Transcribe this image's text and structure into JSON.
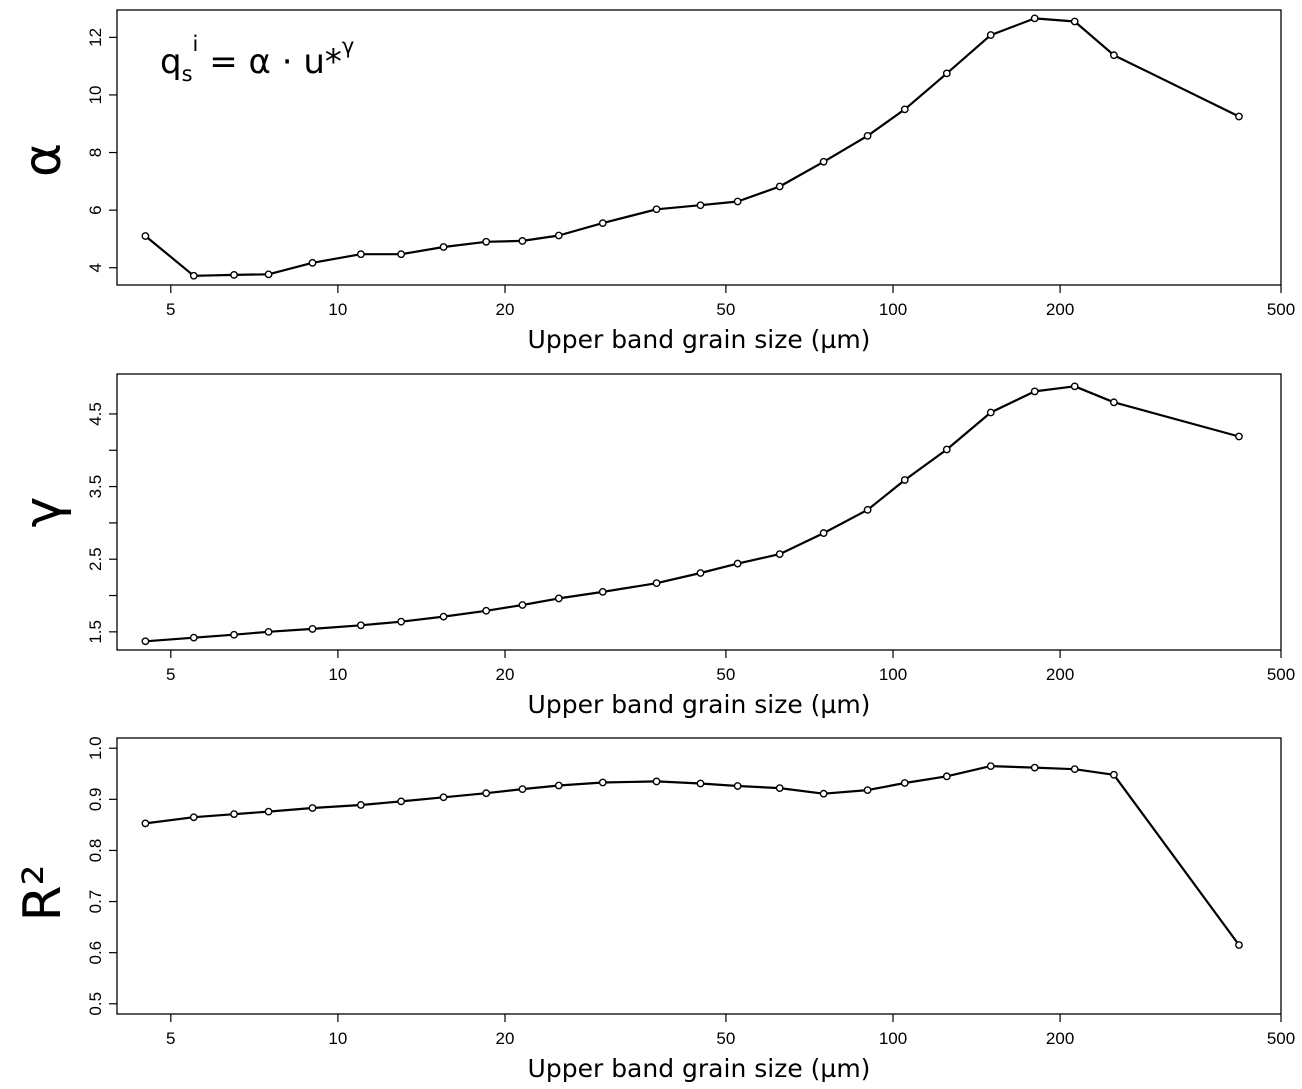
{
  "chart_data": [
    {
      "type": "line",
      "id": "alpha",
      "ylabel": "α",
      "xlabel": "Upper band grain size (µm)",
      "x_scale": "log",
      "xlim": [
        4.0,
        500
      ],
      "x_ticks": [
        5,
        10,
        20,
        50,
        100,
        200,
        500
      ],
      "x_tick_labels": [
        "5",
        "10",
        "20",
        "50",
        "100",
        "200",
        "500"
      ],
      "ylim": [
        3.4,
        12.95
      ],
      "y_ticks": [
        4,
        6,
        8,
        10,
        12
      ],
      "y_tick_labels": [
        "4",
        "6",
        "8",
        "10",
        "12"
      ],
      "annotation": {
        "base": "q",
        "sub": "s",
        "sup": "i",
        "mid": " = α · u*",
        "exp": "γ"
      },
      "series": [
        {
          "x": [
            4.5,
            5.5,
            6.5,
            7.5,
            9.0,
            11.0,
            13.0,
            15.5,
            18.5,
            21.5,
            25.0,
            30.0,
            37.5,
            45.0,
            52.5,
            62.5,
            75.0,
            90.0,
            105.0,
            125.0,
            150.0,
            180.0,
            212.5,
            250.0,
            420.0
          ],
          "y": [
            5.1,
            3.72,
            3.75,
            3.77,
            4.17,
            4.47,
            4.47,
            4.72,
            4.9,
            4.93,
            5.12,
            5.55,
            6.03,
            6.17,
            6.3,
            6.82,
            7.68,
            8.58,
            9.5,
            10.75,
            12.08,
            12.66,
            12.55,
            11.38,
            9.25
          ]
        }
      ]
    },
    {
      "type": "line",
      "id": "gamma",
      "ylabel": "γ",
      "xlabel": "Upper band grain size (µm)",
      "x_scale": "log",
      "xlim": [
        4.0,
        500
      ],
      "x_ticks": [
        5,
        10,
        20,
        50,
        100,
        200,
        500
      ],
      "x_tick_labels": [
        "5",
        "10",
        "20",
        "50",
        "100",
        "200",
        "500"
      ],
      "ylim": [
        1.25,
        5.05
      ],
      "y_ticks": [
        1.5,
        2.0,
        2.5,
        3.0,
        3.5,
        4.0,
        4.5
      ],
      "y_tick_labels": [
        "1.5",
        "",
        "2.5",
        "",
        "3.5",
        "",
        "4.5"
      ],
      "series": [
        {
          "x": [
            4.5,
            5.5,
            6.5,
            7.5,
            9.0,
            11.0,
            13.0,
            15.5,
            18.5,
            21.5,
            25.0,
            30.0,
            37.5,
            45.0,
            52.5,
            62.5,
            75.0,
            90.0,
            105.0,
            125.0,
            150.0,
            180.0,
            212.5,
            250.0,
            420.0
          ],
          "y": [
            1.37,
            1.42,
            1.46,
            1.5,
            1.54,
            1.59,
            1.64,
            1.71,
            1.79,
            1.87,
            1.96,
            2.05,
            2.17,
            2.31,
            2.44,
            2.57,
            2.86,
            3.18,
            3.59,
            4.01,
            4.52,
            4.81,
            4.88,
            4.66,
            4.19
          ]
        }
      ]
    },
    {
      "type": "line",
      "id": "r2",
      "ylabel": "R²",
      "xlabel": "Upper band grain size (µm)",
      "x_scale": "log",
      "xlim": [
        4.0,
        500
      ],
      "x_ticks": [
        5,
        10,
        20,
        50,
        100,
        200,
        500
      ],
      "x_tick_labels": [
        "5",
        "10",
        "20",
        "50",
        "100",
        "200",
        "500"
      ],
      "ylim": [
        0.48,
        1.02
      ],
      "y_ticks": [
        0.5,
        0.6,
        0.7,
        0.8,
        0.9,
        1.0
      ],
      "y_tick_labels": [
        "0.5",
        "0.6",
        "0.7",
        "0.8",
        "0.9",
        "1.0"
      ],
      "series": [
        {
          "x": [
            4.5,
            5.5,
            6.5,
            7.5,
            9.0,
            11.0,
            13.0,
            15.5,
            18.5,
            21.5,
            25.0,
            30.0,
            37.5,
            45.0,
            52.5,
            62.5,
            75.0,
            90.0,
            105.0,
            125.0,
            150.0,
            180.0,
            212.5,
            250.0,
            420.0
          ],
          "y": [
            0.853,
            0.865,
            0.871,
            0.876,
            0.883,
            0.889,
            0.896,
            0.904,
            0.912,
            0.92,
            0.927,
            0.933,
            0.935,
            0.931,
            0.926,
            0.922,
            0.911,
            0.918,
            0.932,
            0.945,
            0.965,
            0.962,
            0.959,
            0.948,
            0.615
          ]
        }
      ]
    }
  ]
}
